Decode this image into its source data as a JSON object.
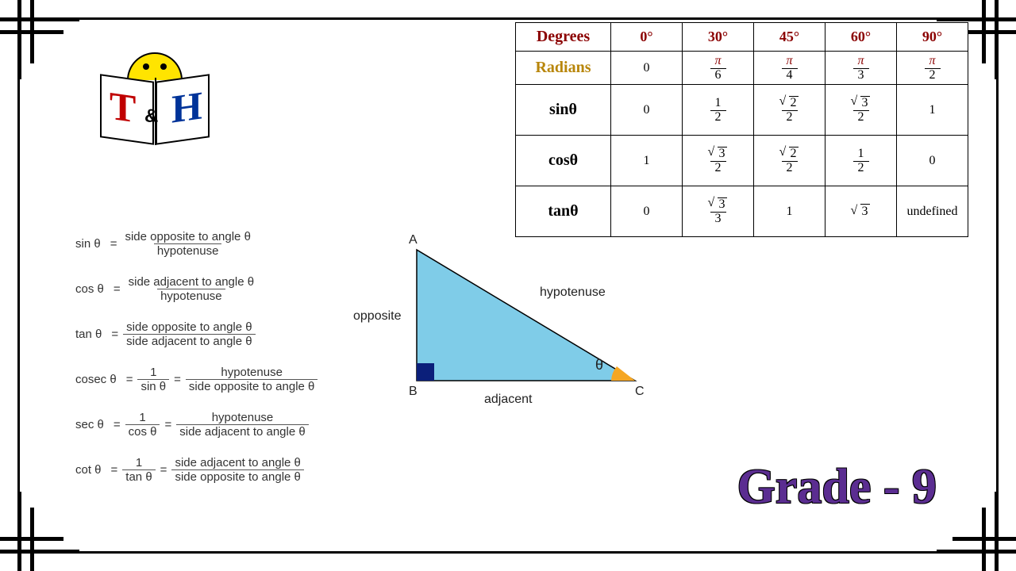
{
  "logo": {
    "left_letter": "T",
    "amp": "&",
    "right_letter": "H",
    "left_color": "#c00000",
    "right_color": "#003399",
    "sun_color": "#ffe400"
  },
  "formulas": [
    {
      "lhs": "sin θ",
      "rhs": [
        {
          "num": "side opposite to angle θ",
          "den": "hypotenuse"
        }
      ]
    },
    {
      "lhs": "cos θ",
      "rhs": [
        {
          "num": "side adjacent to angle θ",
          "den": "hypotenuse"
        }
      ]
    },
    {
      "lhs": "tan θ",
      "rhs": [
        {
          "num": "side opposite to angle θ",
          "den": "side adjacent to angle θ"
        }
      ]
    },
    {
      "lhs": "cosec θ",
      "rhs": [
        {
          "num": "1",
          "den": "sin θ"
        },
        {
          "num": "hypotenuse",
          "den": "side opposite to angle θ"
        }
      ]
    },
    {
      "lhs": "sec θ",
      "rhs": [
        {
          "num": "1",
          "den": "cos θ"
        },
        {
          "num": "hypotenuse",
          "den": "side adjacent to angle θ"
        }
      ]
    },
    {
      "lhs": "cot θ",
      "rhs": [
        {
          "num": "1",
          "den": "tan θ"
        },
        {
          "num": "side adjacent to angle θ",
          "den": "side opposite to angle θ"
        }
      ]
    }
  ],
  "triangle": {
    "fill": "#7fcce8",
    "right_angle_fill": "#0b1f7a",
    "theta_fill": "#f5a623",
    "labels": {
      "A": "A",
      "B": "B",
      "C": "C",
      "opposite": "opposite",
      "adjacent": "adjacent",
      "hypotenuse": "hypotenuse",
      "theta": "θ"
    }
  },
  "table": {
    "degrees_label": "Degrees",
    "radians_label": "Radians",
    "columns": [
      "0°",
      "30°",
      "45°",
      "60°",
      "90°"
    ],
    "radians": [
      {
        "type": "plain",
        "value": "0"
      },
      {
        "type": "frac",
        "num": "π",
        "den": "6"
      },
      {
        "type": "frac",
        "num": "π",
        "den": "4"
      },
      {
        "type": "frac",
        "num": "π",
        "den": "3"
      },
      {
        "type": "frac",
        "num": "π",
        "den": "2"
      }
    ],
    "rows": [
      {
        "label": "sinθ",
        "cells": [
          {
            "type": "plain",
            "value": "0"
          },
          {
            "type": "frac",
            "num": "1",
            "den": "2"
          },
          {
            "type": "sqrtfrac",
            "rad": "2",
            "den": "2"
          },
          {
            "type": "sqrtfrac",
            "rad": "3",
            "den": "2"
          },
          {
            "type": "plain",
            "value": "1"
          }
        ]
      },
      {
        "label": "cosθ",
        "cells": [
          {
            "type": "plain",
            "value": "1"
          },
          {
            "type": "sqrtfrac",
            "rad": "3",
            "den": "2"
          },
          {
            "type": "sqrtfrac",
            "rad": "2",
            "den": "2"
          },
          {
            "type": "frac",
            "num": "1",
            "den": "2"
          },
          {
            "type": "plain",
            "value": "0"
          }
        ]
      },
      {
        "label": "tanθ",
        "cells": [
          {
            "type": "plain",
            "value": "0"
          },
          {
            "type": "sqrtfrac",
            "rad": "3",
            "den": "3"
          },
          {
            "type": "plain",
            "value": "1"
          },
          {
            "type": "sqrt",
            "rad": "3"
          },
          {
            "type": "plain",
            "value": "undefined"
          }
        ]
      }
    ],
    "header_color": "#8b0000",
    "radlabel_color": "#b8860b"
  },
  "grade": {
    "text": "Grade - 9",
    "color": "#5b2d91",
    "fontsize": 62
  }
}
